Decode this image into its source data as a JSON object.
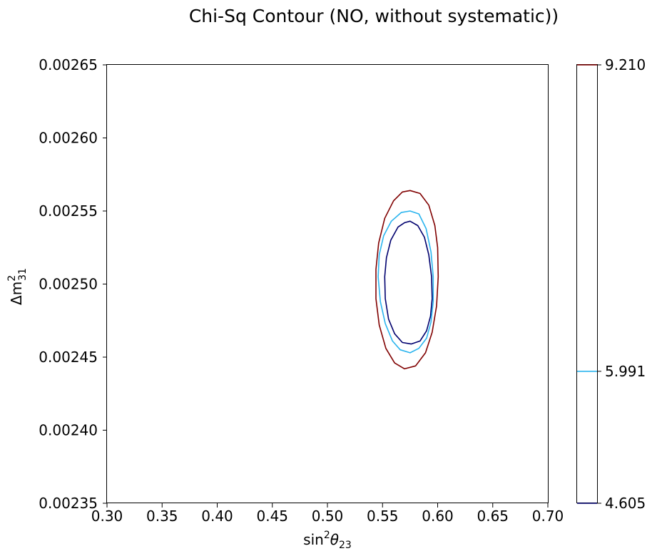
{
  "chart_data": {
    "type": "contour",
    "title": "Chi-Sq Contour (NO, without systematic))",
    "xlabel": {
      "base": "sin",
      "sup": "2",
      "greek": "θ",
      "sub": "23"
    },
    "ylabel": {
      "base": "Δm",
      "sup": "2",
      "sub": "31"
    },
    "xlim": [
      0.3,
      0.7
    ],
    "ylim": [
      0.00235,
      0.00265
    ],
    "xticks": [
      "0.30",
      "0.35",
      "0.40",
      "0.45",
      "0.50",
      "0.55",
      "0.60",
      "0.65",
      "0.70"
    ],
    "xtick_values": [
      0.3,
      0.35,
      0.4,
      0.45,
      0.5,
      0.55,
      0.6,
      0.65,
      0.7
    ],
    "yticks": [
      "0.00235",
      "0.00240",
      "0.00245",
      "0.00250",
      "0.00255",
      "0.00260",
      "0.00265"
    ],
    "ytick_values": [
      0.00235,
      0.0024,
      0.00245,
      0.0025,
      0.00255,
      0.0026,
      0.00265
    ],
    "levels": [
      {
        "label": "4.605",
        "value": 4.605,
        "color": "#00006e",
        "contour": [
          [
            0.575,
            0.002543
          ],
          [
            0.582,
            0.00254
          ],
          [
            0.588,
            0.002532
          ],
          [
            0.592,
            0.00252
          ],
          [
            0.5945,
            0.002505
          ],
          [
            0.595,
            0.00249
          ],
          [
            0.5935,
            0.002478
          ],
          [
            0.59,
            0.002468
          ],
          [
            0.584,
            0.002461
          ],
          [
            0.576,
            0.002459
          ],
          [
            0.568,
            0.00246
          ],
          [
            0.561,
            0.002466
          ],
          [
            0.5555,
            0.002476
          ],
          [
            0.5525,
            0.00249
          ],
          [
            0.552,
            0.002505
          ],
          [
            0.5535,
            0.002518
          ],
          [
            0.5575,
            0.00253
          ],
          [
            0.564,
            0.002539
          ],
          [
            0.57,
            0.002542
          ]
        ]
      },
      {
        "label": "5.991",
        "value": 5.991,
        "color": "#2ab4ee",
        "contour": [
          [
            0.575,
            0.00255
          ],
          [
            0.583,
            0.002548
          ],
          [
            0.5895,
            0.002538
          ],
          [
            0.594,
            0.002522
          ],
          [
            0.596,
            0.002505
          ],
          [
            0.596,
            0.002488
          ],
          [
            0.594,
            0.002474
          ],
          [
            0.59,
            0.002463
          ],
          [
            0.583,
            0.002456
          ],
          [
            0.575,
            0.002453
          ],
          [
            0.566,
            0.002455
          ],
          [
            0.559,
            0.002461
          ],
          [
            0.5525,
            0.002473
          ],
          [
            0.548,
            0.002488
          ],
          [
            0.546,
            0.002505
          ],
          [
            0.547,
            0.00252
          ],
          [
            0.551,
            0.002533
          ],
          [
            0.558,
            0.002543
          ],
          [
            0.567,
            0.002549
          ]
        ]
      },
      {
        "label": "9.210",
        "value": 9.21,
        "color": "#800000",
        "contour": [
          [
            0.575,
            0.002564
          ],
          [
            0.584,
            0.002562
          ],
          [
            0.592,
            0.002554
          ],
          [
            0.5975,
            0.00254
          ],
          [
            0.6,
            0.002525
          ],
          [
            0.6005,
            0.002505
          ],
          [
            0.599,
            0.002485
          ],
          [
            0.595,
            0.002467
          ],
          [
            0.589,
            0.002453
          ],
          [
            0.58,
            0.002444
          ],
          [
            0.57,
            0.002442
          ],
          [
            0.561,
            0.002446
          ],
          [
            0.553,
            0.002456
          ],
          [
            0.547,
            0.002472
          ],
          [
            0.544,
            0.00249
          ],
          [
            0.544,
            0.00251
          ],
          [
            0.5465,
            0.002528
          ],
          [
            0.552,
            0.002545
          ],
          [
            0.56,
            0.002557
          ],
          [
            0.568,
            0.002563
          ]
        ]
      }
    ],
    "colorbar": {
      "range": [
        4.605,
        9.21
      ],
      "ticks": [
        "4.605",
        "5.991",
        "9.210"
      ],
      "tick_values": [
        4.605,
        5.991,
        9.21
      ]
    }
  }
}
